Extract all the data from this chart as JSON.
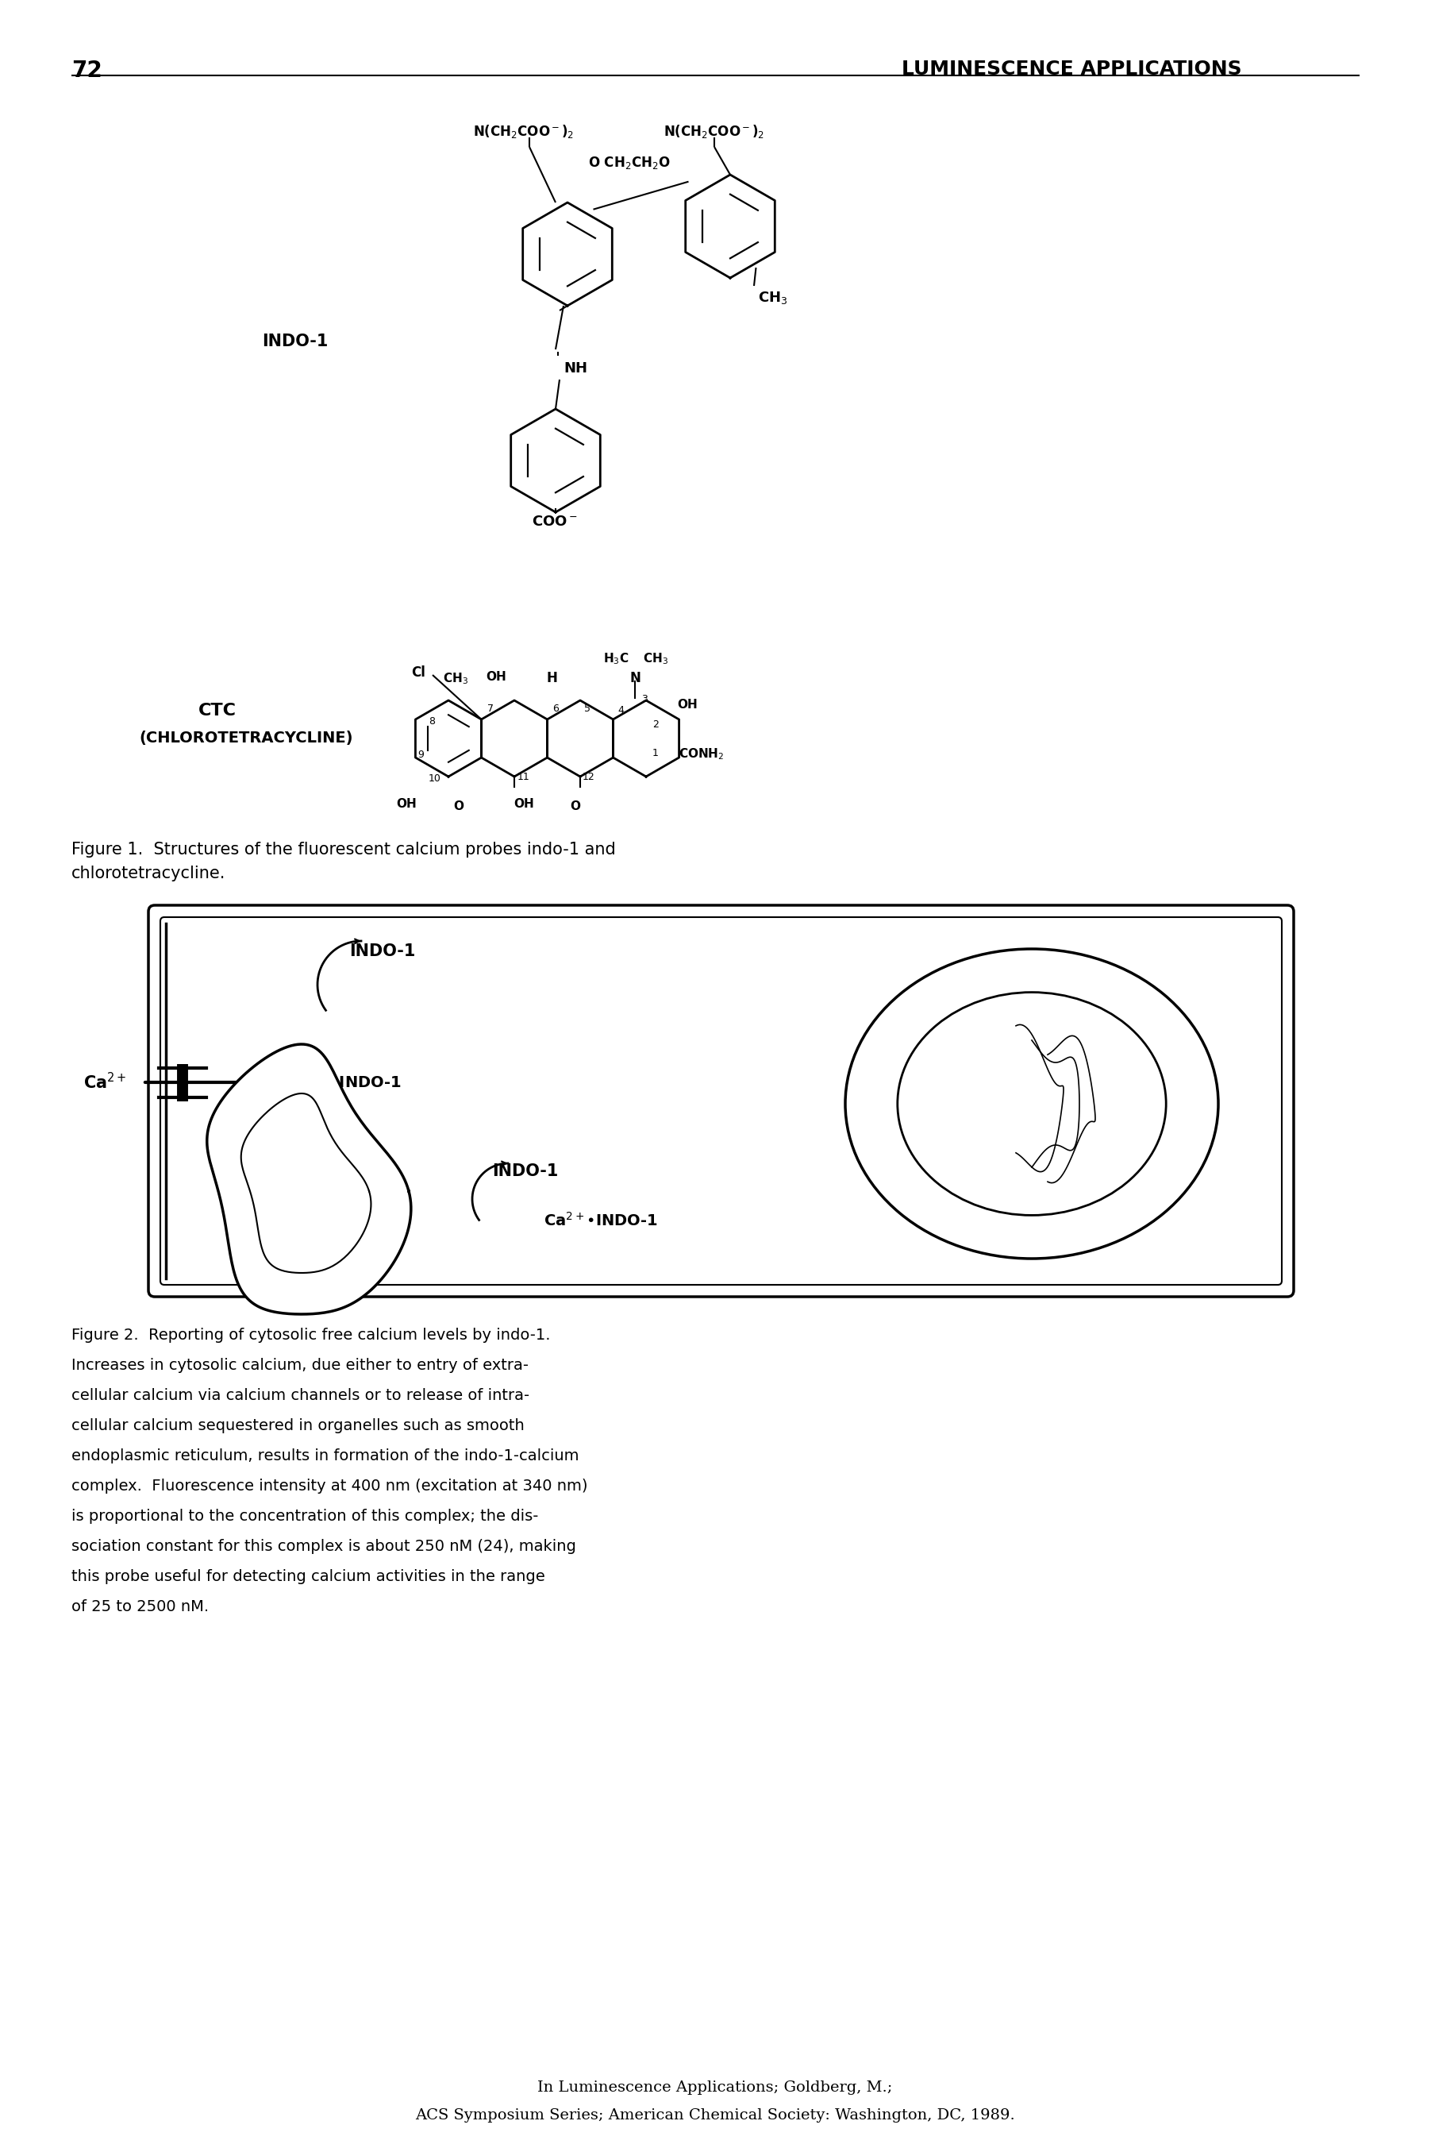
{
  "page_number": "72",
  "header_title": "LUMINESCENCE APPLICATIONS",
  "fig1_caption_line1": "Figure 1.  Structures of the fluorescent calcium probes indo-1 and",
  "fig1_caption_line2": "chlorotetracycline.",
  "fig2_caption_lines": [
    "Figure 2.  Reporting of cytosolic free calcium levels by indo-1.",
    "Increases in cytosolic calcium, due either to entry of extra-",
    "cellular calcium via calcium channels or to release of intra-",
    "cellular calcium sequestered in organelles such as smooth",
    "endoplasmic reticulum, results in formation of the indo-1-calcium",
    "complex.  Fluorescence intensity at 400 nm (excitation at 340 nm)",
    "is proportional to the concentration of this complex; the dis-",
    "sociation constant for this complex is about 250 nM (24), making",
    "this probe useful for detecting calcium activities in the range",
    "of 25 to 2500 nM."
  ],
  "footer_line1": "In Luminescence Applications; Goldberg, M.;",
  "footer_line2": "ACS Symposium Series; American Chemical Society: Washington, DC, 1989.",
  "bg_color": "#ffffff",
  "text_color": "#000000"
}
